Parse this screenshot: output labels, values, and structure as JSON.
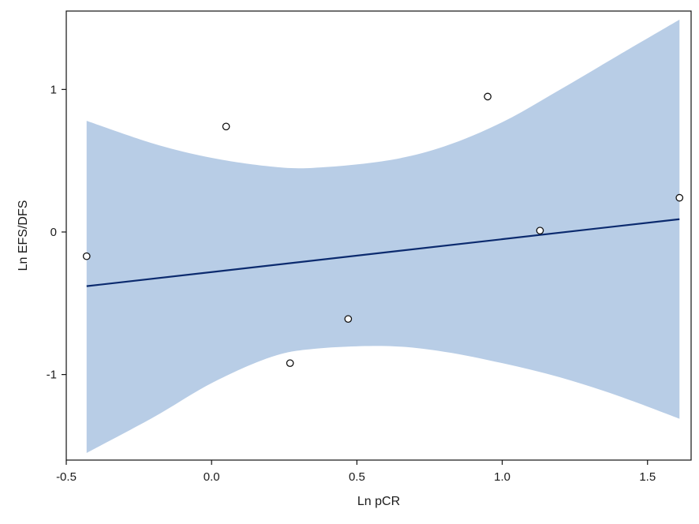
{
  "chart_data": {
    "type": "scatter",
    "title": "",
    "xlabel": "Ln pCR",
    "ylabel": "Ln EFS/DFS",
    "xlim": [
      -0.5,
      1.65
    ],
    "ylim": [
      -1.6,
      1.55
    ],
    "x_ticks": [
      -0.5,
      0.0,
      0.5,
      1.0,
      1.5
    ],
    "x_tick_labels": [
      "-0.5",
      "0.0",
      "0.5",
      "1.0",
      "1.5"
    ],
    "y_ticks": [
      -1,
      0,
      1
    ],
    "y_tick_labels": [
      "-1",
      "0",
      "1"
    ],
    "grid": false,
    "legend": "none",
    "points": [
      {
        "x": -0.43,
        "y": -0.17
      },
      {
        "x": 0.05,
        "y": 0.74
      },
      {
        "x": 0.27,
        "y": -0.92
      },
      {
        "x": 0.47,
        "y": -0.61
      },
      {
        "x": 0.95,
        "y": 0.95
      },
      {
        "x": 1.13,
        "y": 0.01
      },
      {
        "x": 1.61,
        "y": 0.24
      }
    ],
    "fit_line": {
      "x": [
        -0.43,
        1.61
      ],
      "y": [
        -0.38,
        0.09
      ]
    },
    "confidence_band": {
      "x": [
        -0.43,
        -0.2,
        0.0,
        0.2,
        0.35,
        0.6,
        0.8,
        1.0,
        1.2,
        1.4,
        1.61
      ],
      "upper": [
        0.78,
        0.62,
        0.52,
        0.46,
        0.45,
        0.5,
        0.6,
        0.77,
        1.0,
        1.24,
        1.49
      ],
      "lower": [
        -1.55,
        -1.3,
        -1.06,
        -0.88,
        -0.82,
        -0.8,
        -0.84,
        -0.92,
        -1.02,
        -1.15,
        -1.31
      ]
    },
    "colors": {
      "band": "#b8cde6",
      "line": "#0b2a6e",
      "marker_fill": "#ffffff",
      "marker_stroke": "#111111",
      "axis": "#111111"
    }
  }
}
